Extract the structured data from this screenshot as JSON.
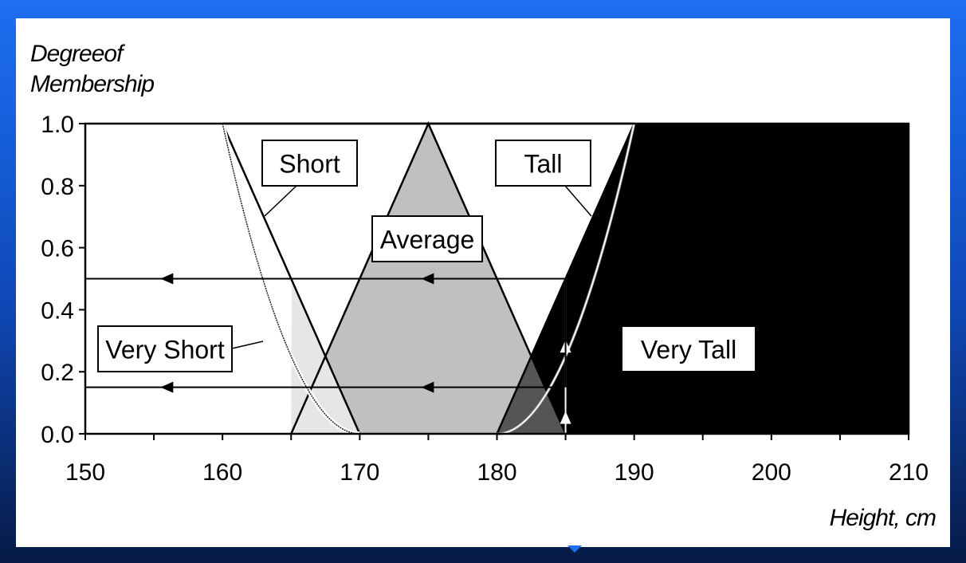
{
  "chart_data": {
    "type": "area",
    "y_axis_title_lines": [
      "Degreeof",
      "Membership"
    ],
    "xlabel": "Height, cm",
    "xlim": [
      150,
      210
    ],
    "ylim": [
      0,
      1
    ],
    "x_ticks": [
      "150",
      "160",
      "170",
      "180",
      "190",
      "200",
      "210"
    ],
    "y_ticks": [
      "0.0",
      "0.2",
      "0.4",
      "0.6",
      "0.8",
      "1.0"
    ],
    "x_minor_step": 5,
    "grid": false,
    "series": [
      {
        "name": "Short",
        "x": [
          150,
          160,
          170,
          210
        ],
        "y": [
          1.0,
          1.0,
          0.0,
          0.0
        ]
      },
      {
        "name": "Average",
        "x": [
          150,
          165,
          175,
          185,
          210
        ],
        "y": [
          0.0,
          0.0,
          1.0,
          0.0,
          0.0
        ]
      },
      {
        "name": "Tall",
        "x": [
          150,
          180,
          190,
          210
        ],
        "y": [
          0.0,
          0.0,
          1.0,
          1.0
        ]
      },
      {
        "name": "Very Short",
        "derived_from": "Short",
        "power": 2
      },
      {
        "name": "Very Tall",
        "derived_from": "Tall",
        "power": 2
      }
    ],
    "labels": {
      "short": "Short",
      "average": "Average",
      "tall": "Tall",
      "very_short": "Very Short",
      "very_tall": "Very Tall"
    },
    "annotations": {
      "input_height": 185,
      "membership_levels": [
        0.5,
        0.15
      ],
      "arrow_marks_x": [
        156,
        175
      ]
    },
    "colors": {
      "background": "#1f6ef0",
      "panel": "#ffffff",
      "short_fill": "#e6e6e6",
      "average_fill": "#c0c0c0",
      "overlap_fill": "#555555",
      "tall_fill": "#000000",
      "line": "#000000"
    }
  }
}
